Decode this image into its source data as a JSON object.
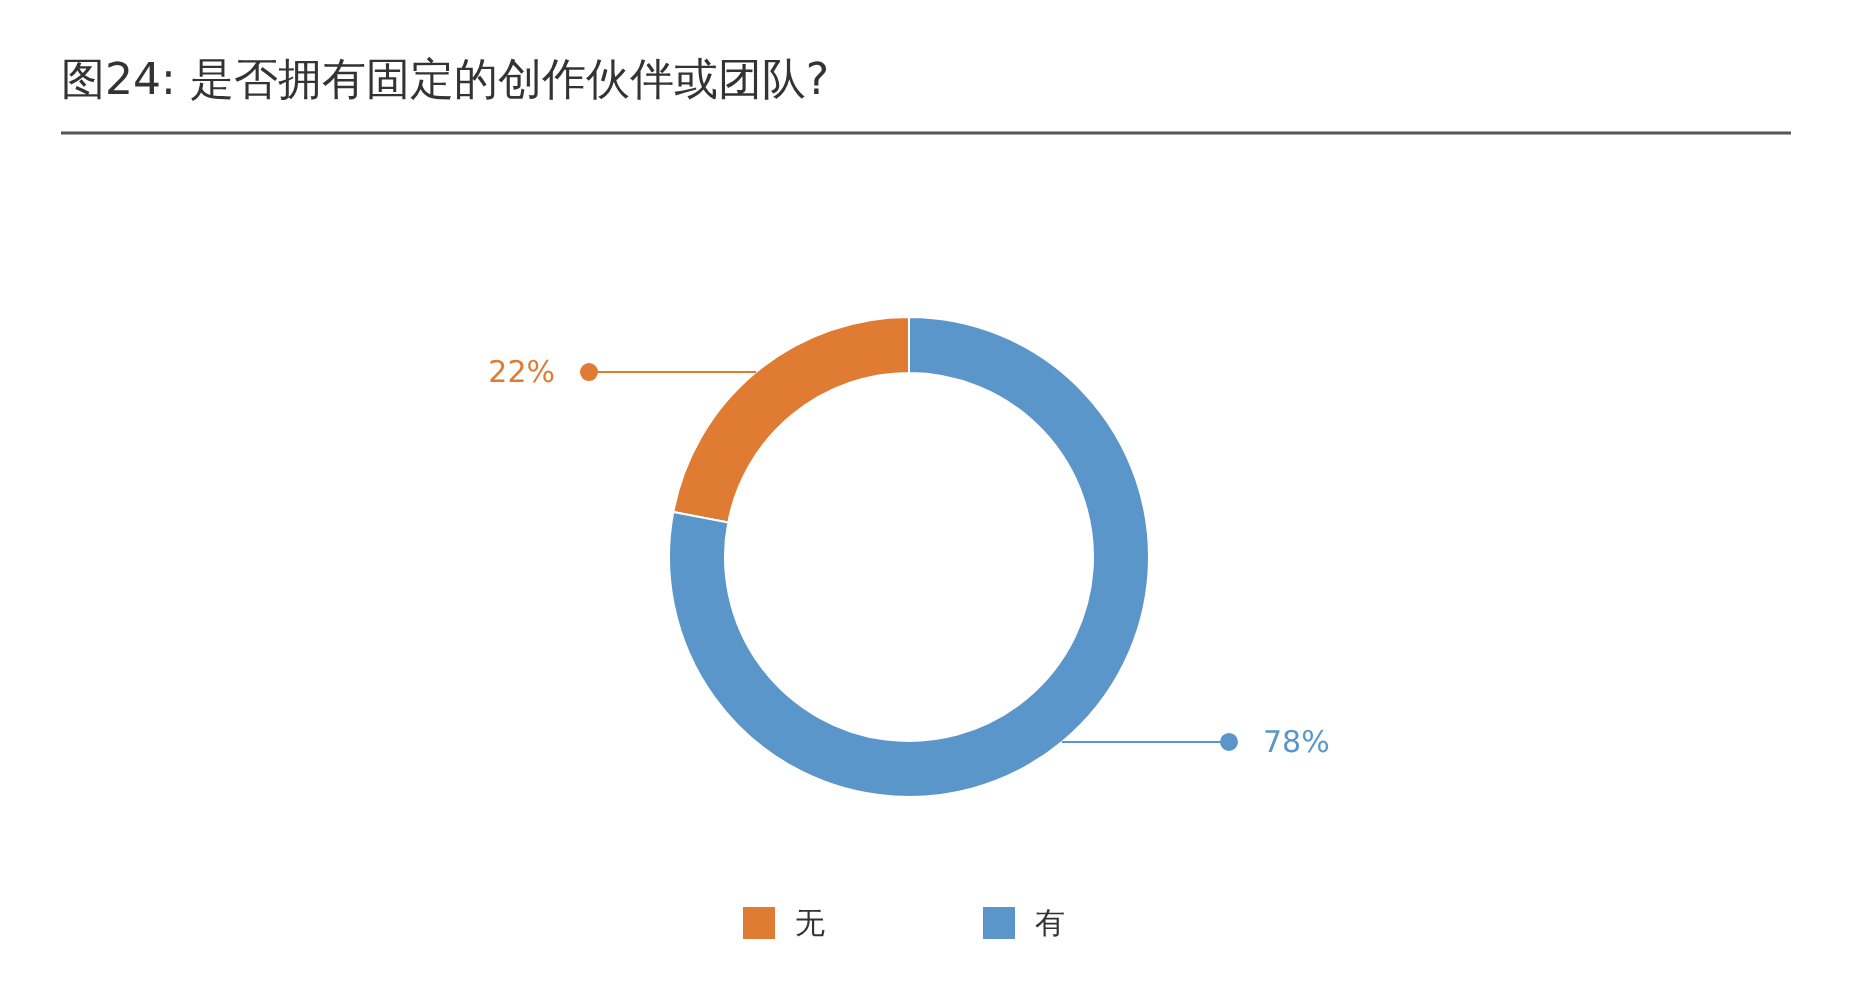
{
  "chart_data": {
    "type": "donut",
    "title": "图24: 是否拥有固定的创作伙伴或团队?",
    "categories": [
      "无",
      "有"
    ],
    "values": [
      22,
      78
    ],
    "colors": [
      "#e07b33",
      "#5b96cb"
    ],
    "value_labels": [
      "22%",
      "78%"
    ],
    "legend": "bottom"
  }
}
